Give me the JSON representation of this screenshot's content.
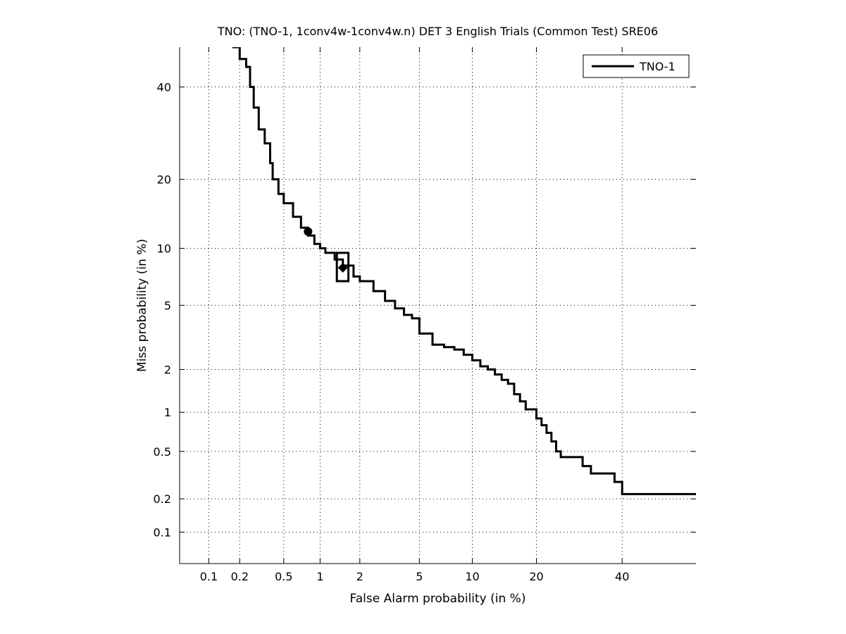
{
  "chart_data": {
    "type": "line",
    "title": "TNO: (TNO-1, 1conv4w-1conv4w.n) DET 3 English Trials (Common Test) SRE06",
    "xlabel": "False Alarm probability (in %)",
    "ylabel": "Miss probability (in %)",
    "scale": "normal-deviate (probit) on both axes",
    "xlim": [
      0.05,
      60
    ],
    "ylim": [
      0.05,
      50
    ],
    "x_ticks": [
      0.1,
      0.2,
      0.5,
      1,
      2,
      5,
      10,
      20,
      40
    ],
    "x_tick_labels": [
      "0.1",
      "0.2",
      "0.5",
      "1",
      "2",
      "5",
      "10",
      "20",
      "40"
    ],
    "y_ticks": [
      0.1,
      0.2,
      0.5,
      1,
      2,
      5,
      10,
      20,
      40
    ],
    "y_tick_labels": [
      "0.1",
      "0.2",
      "0.5",
      "1",
      "2",
      "5",
      "10",
      "20",
      "40"
    ],
    "grid": true,
    "legend_position": "top-right",
    "series": [
      {
        "name": "TNO-1",
        "color": "#000000",
        "x": [
          0.17,
          0.2,
          0.23,
          0.25,
          0.27,
          0.3,
          0.34,
          0.38,
          0.4,
          0.45,
          0.5,
          0.6,
          0.7,
          0.8,
          0.9,
          1.0,
          1.1,
          1.3,
          1.5,
          1.8,
          2.0,
          2.5,
          3.0,
          3.5,
          4.0,
          4.5,
          5.0,
          6.0,
          7.0,
          8.0,
          9.0,
          10,
          11,
          12,
          13,
          14,
          15,
          16,
          17,
          18,
          20,
          21,
          22,
          23,
          24,
          25,
          28,
          30,
          32,
          35,
          38,
          40,
          50,
          60
        ],
        "y": [
          50,
          47,
          45,
          40,
          35,
          30,
          27,
          23,
          20,
          17.5,
          16,
          14,
          12.5,
          11.5,
          10.5,
          10,
          9.5,
          8.8,
          8.2,
          7.2,
          6.8,
          6.0,
          5.3,
          4.8,
          4.4,
          4.2,
          3.4,
          2.9,
          2.8,
          2.7,
          2.5,
          2.3,
          2.1,
          2.0,
          1.85,
          1.7,
          1.6,
          1.35,
          1.2,
          1.05,
          0.9,
          0.8,
          0.7,
          0.6,
          0.5,
          0.45,
          0.45,
          0.38,
          0.33,
          0.33,
          0.28,
          0.22,
          0.22,
          0.22
        ]
      }
    ],
    "markers": [
      {
        "shape": "circle",
        "x": 0.8,
        "y": 12
      },
      {
        "shape": "diamond",
        "x": 1.5,
        "y": 8
      },
      {
        "shape": "rectangle",
        "x_range": [
          1.35,
          1.65
        ],
        "y_range": [
          6.8,
          9.5
        ]
      }
    ]
  }
}
